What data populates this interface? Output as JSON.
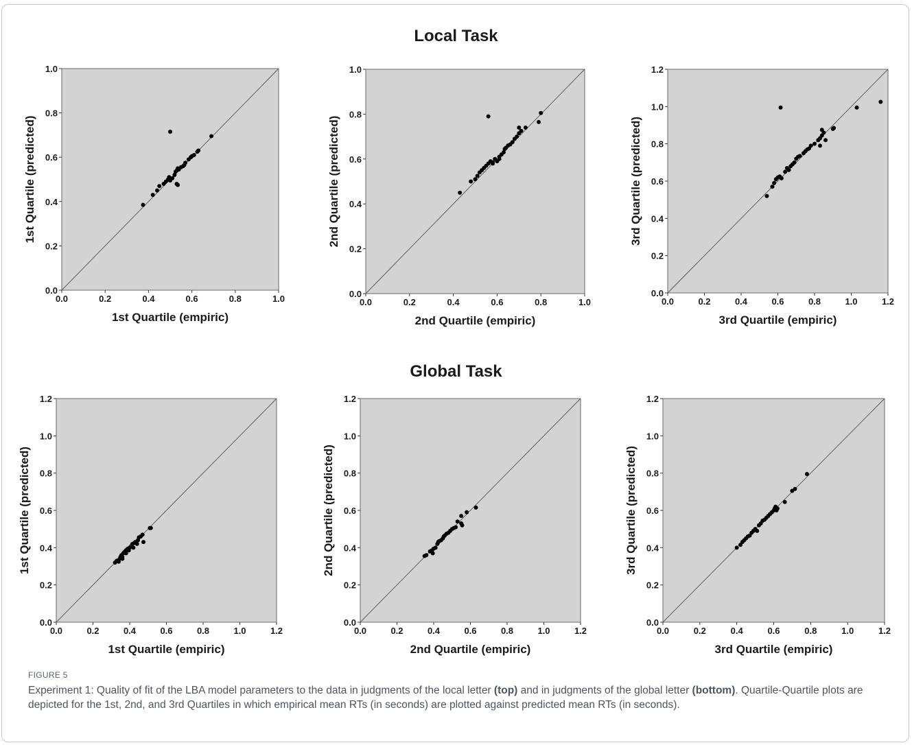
{
  "figure": {
    "label": "FIGURE 5",
    "caption": {
      "part1": "Experiment 1: Quality of fit of the LBA model parameters to the data in judgments of the local letter ",
      "top": "(top)",
      "part2": " and in judgments of the global letter ",
      "bottom": "(bottom)",
      "part3": ". Quartile-Quartile plots are depicted for the 1st, 2nd, and 3rd Quartiles in which empirical mean RTs (in seconds) are plotted against predicted mean RTs (in seconds)."
    },
    "sections": {
      "local_title": "Local Task",
      "global_title": "Global Task"
    }
  },
  "colors": {
    "plot_bg": "#d3d3d3",
    "point": "#000000",
    "diagonal": "#555555"
  },
  "chart_data": [
    {
      "type": "scatter",
      "panel": "local-q1",
      "xlabel": "1st Quartile (empiric)",
      "ylabel": "1st Quartile (predicted)",
      "xlim": [
        0,
        1.0
      ],
      "ylim": [
        0,
        1.0
      ],
      "xticks": [
        "0.0",
        "0.2",
        "0.4",
        "0.6",
        "0.8",
        "1.0"
      ],
      "yticks": [
        "0.0",
        "0.2",
        "0.4",
        "0.6",
        "0.8",
        "1.0"
      ],
      "reference_line": "y = x",
      "points": [
        [
          0.375,
          0.385
        ],
        [
          0.42,
          0.43
        ],
        [
          0.44,
          0.45
        ],
        [
          0.45,
          0.47
        ],
        [
          0.47,
          0.48
        ],
        [
          0.48,
          0.49
        ],
        [
          0.49,
          0.5
        ],
        [
          0.495,
          0.51
        ],
        [
          0.5,
          0.495
        ],
        [
          0.51,
          0.505
        ],
        [
          0.52,
          0.52
        ],
        [
          0.525,
          0.535
        ],
        [
          0.53,
          0.54
        ],
        [
          0.535,
          0.55
        ],
        [
          0.54,
          0.545
        ],
        [
          0.55,
          0.555
        ],
        [
          0.56,
          0.56
        ],
        [
          0.565,
          0.565
        ],
        [
          0.57,
          0.575
        ],
        [
          0.585,
          0.59
        ],
        [
          0.595,
          0.6
        ],
        [
          0.6,
          0.605
        ],
        [
          0.61,
          0.61
        ],
        [
          0.625,
          0.625
        ],
        [
          0.63,
          0.63
        ],
        [
          0.53,
          0.48
        ],
        [
          0.535,
          0.475
        ],
        [
          0.5,
          0.715
        ],
        [
          0.69,
          0.695
        ]
      ]
    },
    {
      "type": "scatter",
      "panel": "local-q2",
      "xlabel": "2nd Quartile (empiric)",
      "ylabel": "2nd Quartile (predicted)",
      "xlim": [
        0,
        1.0
      ],
      "ylim": [
        0,
        1.0
      ],
      "xticks": [
        "0.0",
        "0.2",
        "0.4",
        "0.6",
        "0.8",
        "1.0"
      ],
      "yticks": [
        "0.0",
        "0.2",
        "0.4",
        "0.6",
        "0.8",
        "1.0"
      ],
      "reference_line": "y = x",
      "points": [
        [
          0.43,
          0.45
        ],
        [
          0.48,
          0.5
        ],
        [
          0.5,
          0.51
        ],
        [
          0.51,
          0.525
        ],
        [
          0.52,
          0.54
        ],
        [
          0.53,
          0.55
        ],
        [
          0.54,
          0.56
        ],
        [
          0.55,
          0.57
        ],
        [
          0.56,
          0.58
        ],
        [
          0.57,
          0.59
        ],
        [
          0.58,
          0.585
        ],
        [
          0.59,
          0.6
        ],
        [
          0.6,
          0.59
        ],
        [
          0.61,
          0.61
        ],
        [
          0.62,
          0.62
        ],
        [
          0.63,
          0.63
        ],
        [
          0.635,
          0.645
        ],
        [
          0.64,
          0.65
        ],
        [
          0.65,
          0.66
        ],
        [
          0.66,
          0.665
        ],
        [
          0.67,
          0.675
        ],
        [
          0.68,
          0.69
        ],
        [
          0.69,
          0.7
        ],
        [
          0.7,
          0.715
        ],
        [
          0.71,
          0.725
        ],
        [
          0.73,
          0.74
        ],
        [
          0.7,
          0.74
        ],
        [
          0.79,
          0.765
        ],
        [
          0.8,
          0.805
        ],
        [
          0.56,
          0.79
        ],
        [
          0.58,
          0.58
        ],
        [
          0.61,
          0.6
        ]
      ]
    },
    {
      "type": "scatter",
      "panel": "local-q3",
      "xlabel": "3rd Quartile (empiric)",
      "ylabel": "3rd Quartile (predicted)",
      "xlim": [
        0,
        1.2
      ],
      "ylim": [
        0,
        1.2
      ],
      "xticks": [
        "0.0",
        "0.2",
        "0.4",
        "0.6",
        "0.8",
        "1.0",
        "1.2"
      ],
      "yticks": [
        "0.0",
        "0.2",
        "0.4",
        "0.6",
        "0.8",
        "1.0",
        "1.2"
      ],
      "reference_line": "y = x",
      "points": [
        [
          0.54,
          0.52
        ],
        [
          0.57,
          0.57
        ],
        [
          0.58,
          0.59
        ],
        [
          0.59,
          0.61
        ],
        [
          0.6,
          0.62
        ],
        [
          0.61,
          0.625
        ],
        [
          0.62,
          0.615
        ],
        [
          0.64,
          0.65
        ],
        [
          0.65,
          0.67
        ],
        [
          0.66,
          0.66
        ],
        [
          0.67,
          0.68
        ],
        [
          0.68,
          0.69
        ],
        [
          0.69,
          0.7
        ],
        [
          0.7,
          0.72
        ],
        [
          0.71,
          0.73
        ],
        [
          0.72,
          0.735
        ],
        [
          0.74,
          0.75
        ],
        [
          0.75,
          0.76
        ],
        [
          0.76,
          0.77
        ],
        [
          0.77,
          0.775
        ],
        [
          0.78,
          0.79
        ],
        [
          0.8,
          0.8
        ],
        [
          0.82,
          0.82
        ],
        [
          0.83,
          0.83
        ],
        [
          0.84,
          0.845
        ],
        [
          0.85,
          0.86
        ],
        [
          0.84,
          0.875
        ],
        [
          0.86,
          0.82
        ],
        [
          0.83,
          0.79
        ],
        [
          0.9,
          0.88
        ],
        [
          0.905,
          0.885
        ],
        [
          0.615,
          0.995
        ],
        [
          1.03,
          0.995
        ],
        [
          1.16,
          1.025
        ]
      ]
    },
    {
      "type": "scatter",
      "panel": "global-q1",
      "xlabel": "1st Quartile (empiric)",
      "ylabel": "1st Quartile (predicted)",
      "xlim": [
        0,
        1.2
      ],
      "ylim": [
        0,
        1.2
      ],
      "xticks": [
        "0.0",
        "0.2",
        "0.4",
        "0.6",
        "0.8",
        "1.0",
        "1.2"
      ],
      "yticks": [
        "0.0",
        "0.2",
        "0.4",
        "0.6",
        "0.8",
        "1.0",
        "1.2"
      ],
      "reference_line": "y = x",
      "points": [
        [
          0.32,
          0.32
        ],
        [
          0.33,
          0.33
        ],
        [
          0.34,
          0.325
        ],
        [
          0.345,
          0.34
        ],
        [
          0.35,
          0.35
        ],
        [
          0.355,
          0.36
        ],
        [
          0.36,
          0.35
        ],
        [
          0.365,
          0.37
        ],
        [
          0.37,
          0.375
        ],
        [
          0.375,
          0.38
        ],
        [
          0.38,
          0.385
        ],
        [
          0.385,
          0.39
        ],
        [
          0.39,
          0.395
        ],
        [
          0.395,
          0.385
        ],
        [
          0.4,
          0.4
        ],
        [
          0.405,
          0.405
        ],
        [
          0.41,
          0.41
        ],
        [
          0.415,
          0.42
        ],
        [
          0.42,
          0.4
        ],
        [
          0.425,
          0.425
        ],
        [
          0.43,
          0.43
        ],
        [
          0.44,
          0.42
        ],
        [
          0.445,
          0.44
        ],
        [
          0.45,
          0.455
        ],
        [
          0.46,
          0.46
        ],
        [
          0.47,
          0.47
        ],
        [
          0.475,
          0.43
        ],
        [
          0.51,
          0.505
        ],
        [
          0.515,
          0.505
        ],
        [
          0.36,
          0.34
        ],
        [
          0.38,
          0.37
        ]
      ]
    },
    {
      "type": "scatter",
      "panel": "global-q2",
      "xlabel": "2nd Quartile (empiric)",
      "ylabel": "2nd Quartile (predicted)",
      "xlim": [
        0,
        1.2
      ],
      "ylim": [
        0,
        1.2
      ],
      "xticks": [
        "0.0",
        "0.2",
        "0.4",
        "0.6",
        "0.8",
        "1.0",
        "1.2"
      ],
      "yticks": [
        "0.0",
        "0.2",
        "0.4",
        "0.6",
        "0.8",
        "1.0",
        "1.2"
      ],
      "reference_line": "y = x",
      "points": [
        [
          0.35,
          0.355
        ],
        [
          0.36,
          0.36
        ],
        [
          0.38,
          0.38
        ],
        [
          0.39,
          0.385
        ],
        [
          0.395,
          0.37
        ],
        [
          0.4,
          0.395
        ],
        [
          0.41,
          0.4
        ],
        [
          0.42,
          0.42
        ],
        [
          0.425,
          0.43
        ],
        [
          0.43,
          0.435
        ],
        [
          0.44,
          0.44
        ],
        [
          0.45,
          0.45
        ],
        [
          0.455,
          0.46
        ],
        [
          0.46,
          0.465
        ],
        [
          0.47,
          0.475
        ],
        [
          0.48,
          0.48
        ],
        [
          0.49,
          0.49
        ],
        [
          0.5,
          0.5
        ],
        [
          0.51,
          0.505
        ],
        [
          0.52,
          0.51
        ],
        [
          0.53,
          0.54
        ],
        [
          0.55,
          0.57
        ],
        [
          0.55,
          0.53
        ],
        [
          0.555,
          0.52
        ],
        [
          0.58,
          0.59
        ],
        [
          0.63,
          0.615
        ]
      ]
    },
    {
      "type": "scatter",
      "panel": "global-q3",
      "xlabel": "3rd Quartile (empiric)",
      "ylabel": "3rd Quartile (predicted)",
      "xlim": [
        0,
        1.2
      ],
      "ylim": [
        0,
        1.2
      ],
      "xticks": [
        "0.0",
        "0.2",
        "0.4",
        "0.6",
        "0.8",
        "1.0",
        "1.2"
      ],
      "yticks": [
        "0.0",
        "0.2",
        "0.4",
        "0.6",
        "0.8",
        "1.0",
        "1.2"
      ],
      "reference_line": "y = x",
      "points": [
        [
          0.4,
          0.4
        ],
        [
          0.42,
          0.415
        ],
        [
          0.43,
          0.43
        ],
        [
          0.44,
          0.44
        ],
        [
          0.45,
          0.45
        ],
        [
          0.46,
          0.46
        ],
        [
          0.47,
          0.465
        ],
        [
          0.48,
          0.48
        ],
        [
          0.49,
          0.49
        ],
        [
          0.5,
          0.5
        ],
        [
          0.51,
          0.49
        ],
        [
          0.52,
          0.52
        ],
        [
          0.53,
          0.53
        ],
        [
          0.54,
          0.545
        ],
        [
          0.55,
          0.55
        ],
        [
          0.56,
          0.56
        ],
        [
          0.57,
          0.57
        ],
        [
          0.58,
          0.58
        ],
        [
          0.59,
          0.59
        ],
        [
          0.6,
          0.6
        ],
        [
          0.605,
          0.61
        ],
        [
          0.61,
          0.62
        ],
        [
          0.615,
          0.6
        ],
        [
          0.62,
          0.61
        ],
        [
          0.66,
          0.645
        ],
        [
          0.7,
          0.705
        ],
        [
          0.715,
          0.715
        ],
        [
          0.78,
          0.795
        ]
      ]
    }
  ]
}
